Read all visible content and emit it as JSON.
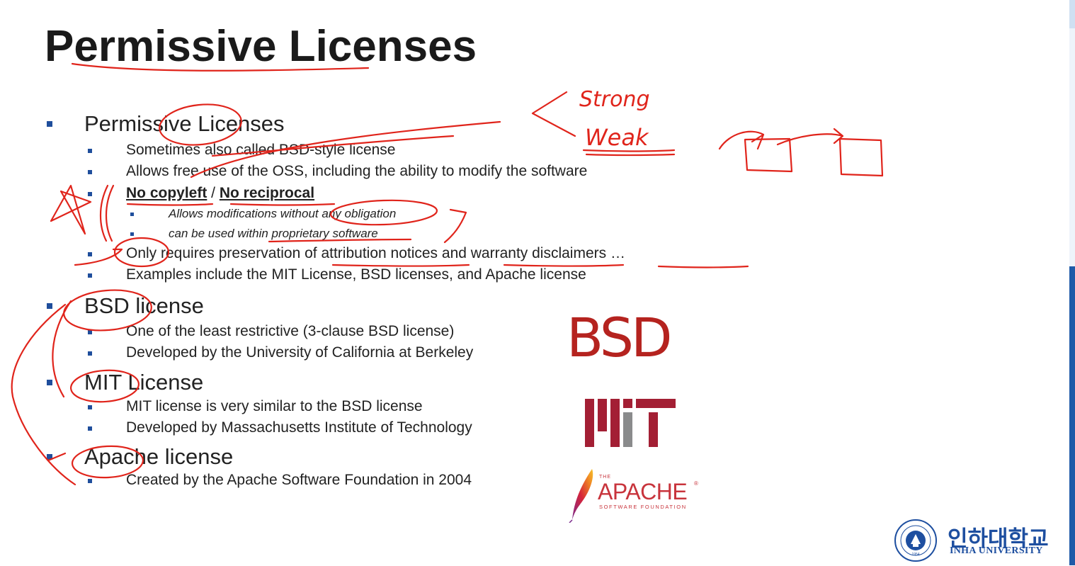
{
  "slide": {
    "title": "Permissive Licenses",
    "sections": [
      {
        "heading": "Permissive Licenses",
        "items": [
          {
            "text": "Sometimes also called BSD-style license"
          },
          {
            "text": "Allows free use of the OSS, including the ability to modify the software"
          },
          {
            "part1": "No copyleft",
            "sep": " / ",
            "part2": "No reciprocal",
            "sub": [
              "Allows modifications without any obligation",
              "can be used within proprietary software"
            ]
          },
          {
            "text": "Only requires preservation of attribution notices and warranty disclaimers …"
          },
          {
            "text": "Examples include the MIT License, BSD licenses, and Apache license"
          }
        ]
      },
      {
        "heading": "BSD license",
        "items": [
          {
            "text": "One of the least restrictive (3-clause BSD license)"
          },
          {
            "text": "Developed by the University of California at Berkeley"
          }
        ]
      },
      {
        "heading": "MIT License",
        "items": [
          {
            "text": "MIT license is very similar to the BSD license"
          },
          {
            "text": "Developed by Massachusetts Institute of Technology"
          }
        ]
      },
      {
        "heading": "Apache license",
        "items": [
          {
            "text": "Created by the Apache Software Foundation in 2004"
          }
        ]
      }
    ]
  },
  "logos": {
    "bsd": {
      "text": "BSD",
      "color": "#b5231f"
    },
    "mit": {
      "text": "MIT",
      "color": "#a31f34",
      "gray": "#8a8b8c"
    },
    "apache": {
      "the": "THE",
      "name": "APACHE",
      "tm": "®",
      "sub": "SOFTWARE FOUNDATION",
      "color": "#c8343c"
    }
  },
  "handwriting": {
    "strong": "Strong",
    "weak": "Weak",
    "ink_color": "#e0241b"
  },
  "university": {
    "name_ko": "인하대학교",
    "name_en": "INHA UNIVERSITY",
    "seal_year": "1954",
    "color": "#1e4fa0"
  },
  "theme": {
    "bullet_color": "#1f4e9c",
    "scrollbar_color": "#1e5aa8"
  }
}
